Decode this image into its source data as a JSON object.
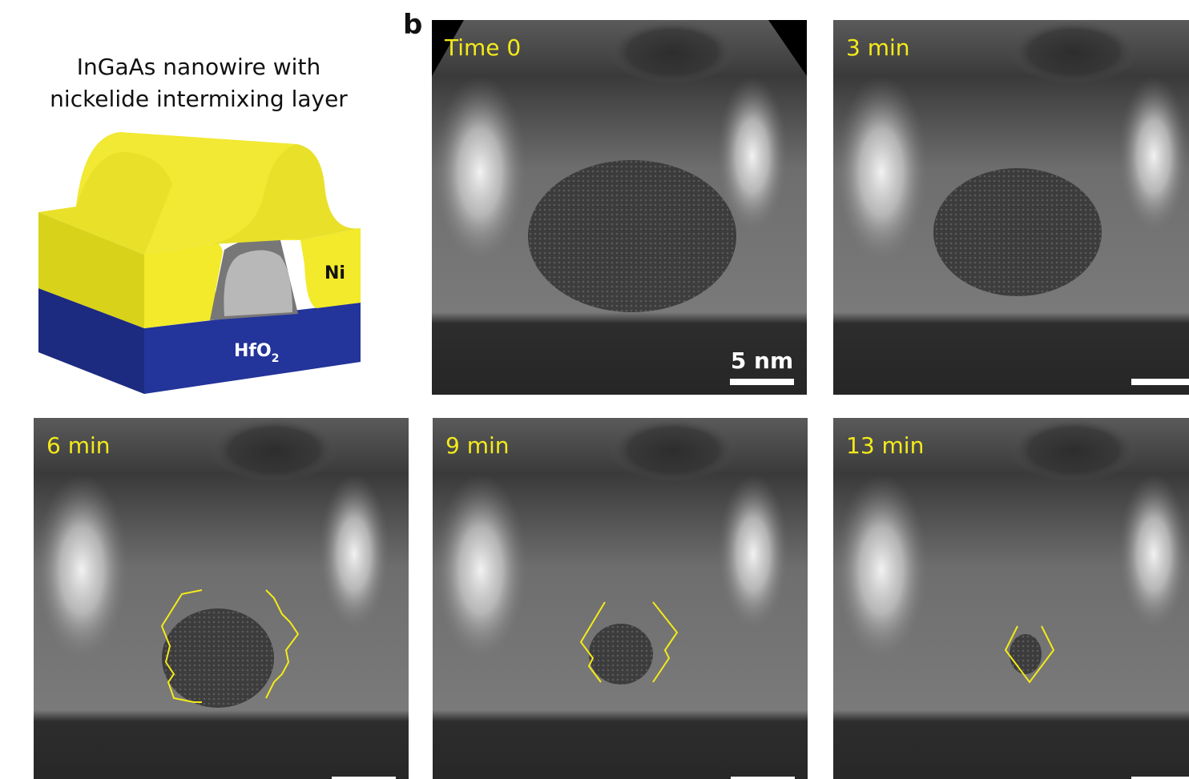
{
  "figure": {
    "panel_letter": "b",
    "schematic": {
      "title_lines": [
        "InGaAs nanowire with",
        "nickelide intermixing layer"
      ],
      "ni_label": "Ni",
      "hfo2_label": {
        "base": "HfO",
        "subscript": "2"
      }
    },
    "panels": [
      {
        "label": "Time 0"
      },
      {
        "label": "3 min"
      },
      {
        "label": "6 min"
      },
      {
        "label": "9 min"
      },
      {
        "label": "13 min"
      }
    ],
    "scale_bar": "5 nm"
  }
}
